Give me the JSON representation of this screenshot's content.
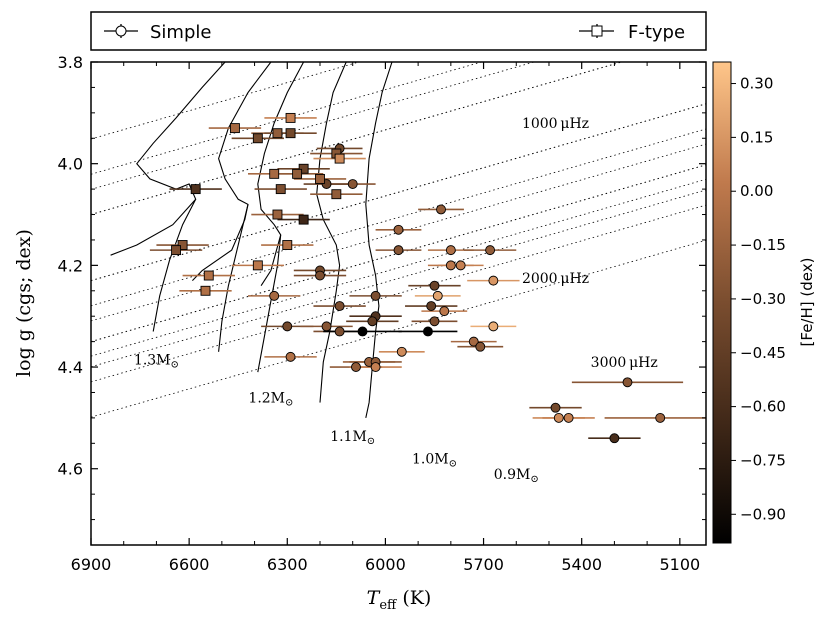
{
  "chart_data": {
    "type": "scatter",
    "xlabel": "T_eff (K)",
    "xlabel_main": "T",
    "xlabel_sub": "eff",
    "xlabel_unit": " (K)",
    "ylabel": "log g (cgs; dex)",
    "xlim": [
      6900,
      5020
    ],
    "ylim": [
      4.75,
      3.8
    ],
    "x_ticks": [
      6900,
      6600,
      6300,
      6000,
      5700,
      5400,
      5100
    ],
    "x_tick_labels": [
      "6900",
      "6600",
      "6300",
      "6000",
      "5700",
      "5400",
      "5100"
    ],
    "y_ticks": [
      3.8,
      4.0,
      4.2,
      4.4,
      4.6
    ],
    "y_tick_labels": [
      "3.8",
      "4.0",
      "4.2",
      "4.4",
      "4.6"
    ],
    "legend": [
      {
        "label": "Simple",
        "marker": "circle"
      },
      {
        "label": "F-type",
        "marker": "square"
      }
    ],
    "colorbar": {
      "label": "[Fe/H] (dex)",
      "range": [
        -0.98,
        0.36
      ],
      "ticks": [
        0.3,
        0.15,
        0.0,
        -0.15,
        -0.3,
        -0.45,
        -0.6,
        -0.75,
        -0.9
      ],
      "tick_labels": [
        "0.30",
        "0.15",
        "0.00",
        "−0.15",
        "−0.30",
        "−0.45",
        "−0.60",
        "−0.75",
        "−0.90"
      ]
    },
    "tracks": [
      {
        "mass": "1.3",
        "label_x": 6700,
        "label_y": 4.395,
        "points": [
          [
            6490,
            3.8
          ],
          [
            6560,
            3.85
          ],
          [
            6640,
            3.91
          ],
          [
            6710,
            3.96
          ],
          [
            6760,
            4.0
          ],
          [
            6720,
            4.03
          ],
          [
            6640,
            4.05
          ],
          [
            6600,
            4.04
          ],
          [
            6580,
            4.07
          ],
          [
            6650,
            4.12
          ],
          [
            6760,
            4.16
          ],
          [
            6840,
            4.18
          ]
        ]
      },
      {
        "mass": "1.3-ms",
        "label_x": null,
        "label_y": null,
        "points": [
          [
            6580,
            4.07
          ],
          [
            6620,
            4.12
          ],
          [
            6660,
            4.19
          ],
          [
            6690,
            4.26
          ],
          [
            6710,
            4.33
          ]
        ]
      },
      {
        "mass": "1.2",
        "label_x": 6350,
        "label_y": 4.475,
        "points": [
          [
            6350,
            3.8
          ],
          [
            6420,
            3.86
          ],
          [
            6480,
            3.93
          ],
          [
            6510,
            3.99
          ],
          [
            6490,
            4.03
          ],
          [
            6450,
            4.07
          ],
          [
            6420,
            4.08
          ],
          [
            6430,
            4.11
          ],
          [
            6470,
            4.17
          ],
          [
            6560,
            4.21
          ],
          [
            6590,
            4.23
          ]
        ]
      },
      {
        "mass": "1.2-ms",
        "label_x": null,
        "label_y": null,
        "points": [
          [
            6420,
            4.08
          ],
          [
            6450,
            4.16
          ],
          [
            6480,
            4.24
          ],
          [
            6500,
            4.31
          ],
          [
            6510,
            4.37
          ]
        ]
      },
      {
        "mass": "1.1",
        "label_x": 6100,
        "label_y": 4.545,
        "points": [
          [
            6250,
            3.8
          ],
          [
            6300,
            3.86
          ],
          [
            6340,
            3.92
          ],
          [
            6370,
            3.98
          ],
          [
            6390,
            4.04
          ],
          [
            6380,
            4.09
          ],
          [
            6340,
            4.12
          ],
          [
            6320,
            4.14
          ],
          [
            6350,
            4.21
          ],
          [
            6380,
            4.24
          ]
        ]
      },
      {
        "mass": "1.1-ms",
        "label_x": null,
        "label_y": null,
        "points": [
          [
            6320,
            4.14
          ],
          [
            6330,
            4.2
          ],
          [
            6350,
            4.27
          ],
          [
            6370,
            4.34
          ],
          [
            6390,
            4.41
          ]
        ]
      },
      {
        "mass": "1.0",
        "label_x": 5850,
        "label_y": 4.59,
        "points": [
          [
            6120,
            3.8
          ],
          [
            6160,
            3.86
          ],
          [
            6180,
            3.92
          ],
          [
            6200,
            3.99
          ],
          [
            6210,
            4.06
          ],
          [
            6190,
            4.11
          ],
          [
            6150,
            4.16
          ],
          [
            6140,
            4.2
          ],
          [
            6150,
            4.25
          ],
          [
            6170,
            4.33
          ],
          [
            6190,
            4.39
          ],
          [
            6200,
            4.47
          ]
        ]
      },
      {
        "mass": "0.9",
        "label_x": 5610,
        "label_y": 4.62,
        "points": [
          [
            5980,
            3.8
          ],
          [
            6010,
            3.86
          ],
          [
            6030,
            3.92
          ],
          [
            6050,
            3.99
          ],
          [
            6060,
            4.08
          ],
          [
            6050,
            4.16
          ],
          [
            6030,
            4.22
          ],
          [
            6020,
            4.28
          ],
          [
            6030,
            4.33
          ],
          [
            6040,
            4.4
          ],
          [
            6050,
            4.47
          ],
          [
            6060,
            4.5
          ]
        ]
      }
    ],
    "track_labels": [
      {
        "text": "1.3M",
        "x": 6700,
        "y": 4.395
      },
      {
        "text": "1.2M",
        "x": 6350,
        "y": 4.47
      },
      {
        "text": "1.1M",
        "x": 6100,
        "y": 4.545
      },
      {
        "text": "1.0M",
        "x": 5850,
        "y": 4.59
      },
      {
        "text": "0.9M",
        "x": 5600,
        "y": 4.62
      }
    ],
    "numax_lines": [
      {
        "label": "1000 μHz",
        "y_at_6900": 4.1,
        "slope_per_100K": -0.0185
      },
      {
        "label": "2000 μHz",
        "y_at_6900": 4.23,
        "slope_per_100K": -0.0185
      },
      {
        "label": "3000 μHz",
        "y_at_6900": 4.35,
        "slope_per_100K": -0.0185
      }
    ],
    "numax_labels": [
      {
        "text": "1000 μHz",
        "x": 5480,
        "y": 3.93
      },
      {
        "text": "2000 μHz",
        "x": 5480,
        "y": 4.235
      },
      {
        "text": "3000 μHz",
        "x": 5270,
        "y": 4.4
      }
    ],
    "series": [
      {
        "name": "Simple",
        "marker": "circle",
        "points": [
          {
            "teff": 6140,
            "logg": 3.97,
            "feh": -0.35,
            "xerr": 70
          },
          {
            "teff": 6100,
            "logg": 4.04,
            "feh": -0.25,
            "xerr": 70
          },
          {
            "teff": 6180,
            "logg": 4.04,
            "feh": -0.4,
            "xerr": 70
          },
          {
            "teff": 5830,
            "logg": 4.09,
            "feh": -0.2,
            "xerr": 70
          },
          {
            "teff": 5960,
            "logg": 4.13,
            "feh": -0.15,
            "xerr": 70
          },
          {
            "teff": 5960,
            "logg": 4.17,
            "feh": -0.25,
            "xerr": 70
          },
          {
            "teff": 5800,
            "logg": 4.17,
            "feh": -0.05,
            "xerr": 70
          },
          {
            "teff": 5680,
            "logg": 4.17,
            "feh": -0.2,
            "xerr": 80
          },
          {
            "teff": 5800,
            "logg": 4.2,
            "feh": 0.0,
            "xerr": 70
          },
          {
            "teff": 5770,
            "logg": 4.2,
            "feh": 0.05,
            "xerr": 70
          },
          {
            "teff": 6200,
            "logg": 4.21,
            "feh": -0.35,
            "xerr": 80
          },
          {
            "teff": 6200,
            "logg": 4.22,
            "feh": -0.3,
            "xerr": 80
          },
          {
            "teff": 5670,
            "logg": 4.23,
            "feh": 0.15,
            "xerr": 80
          },
          {
            "teff": 5850,
            "logg": 4.24,
            "feh": -0.4,
            "xerr": 80
          },
          {
            "teff": 6340,
            "logg": 4.26,
            "feh": -0.1,
            "xerr": 80
          },
          {
            "teff": 6030,
            "logg": 4.26,
            "feh": -0.3,
            "xerr": 80
          },
          {
            "teff": 5840,
            "logg": 4.26,
            "feh": 0.2,
            "xerr": 70
          },
          {
            "teff": 6140,
            "logg": 4.28,
            "feh": -0.3,
            "xerr": 80
          },
          {
            "teff": 5860,
            "logg": 4.28,
            "feh": -0.45,
            "xerr": 80
          },
          {
            "teff": 5820,
            "logg": 4.29,
            "feh": 0.0,
            "xerr": 70
          },
          {
            "teff": 6030,
            "logg": 4.3,
            "feh": -0.55,
            "xerr": 80
          },
          {
            "teff": 6040,
            "logg": 4.31,
            "feh": -0.45,
            "xerr": 80
          },
          {
            "teff": 5850,
            "logg": 4.31,
            "feh": -0.3,
            "xerr": 70
          },
          {
            "teff": 6300,
            "logg": 4.32,
            "feh": -0.35,
            "xerr": 80
          },
          {
            "teff": 6180,
            "logg": 4.32,
            "feh": -0.25,
            "xerr": 80
          },
          {
            "teff": 6140,
            "logg": 4.33,
            "feh": -0.3,
            "xerr": 80
          },
          {
            "teff": 5670,
            "logg": 4.32,
            "feh": 0.25,
            "xerr": 70
          },
          {
            "teff": 6070,
            "logg": 4.33,
            "feh": -0.98,
            "xerr": 120
          },
          {
            "teff": 5870,
            "logg": 4.33,
            "feh": -0.98,
            "xerr": 90
          },
          {
            "teff": 5730,
            "logg": 4.35,
            "feh": -0.1,
            "xerr": 70
          },
          {
            "teff": 5710,
            "logg": 4.36,
            "feh": -0.25,
            "xerr": 70
          },
          {
            "teff": 5950,
            "logg": 4.37,
            "feh": 0.1,
            "xerr": 70
          },
          {
            "teff": 6290,
            "logg": 4.38,
            "feh": -0.05,
            "xerr": 80
          },
          {
            "teff": 6050,
            "logg": 4.39,
            "feh": -0.15,
            "xerr": 80
          },
          {
            "teff": 6030,
            "logg": 4.39,
            "feh": -0.2,
            "xerr": 80
          },
          {
            "teff": 6090,
            "logg": 4.4,
            "feh": -0.2,
            "xerr": 80
          },
          {
            "teff": 6030,
            "logg": 4.4,
            "feh": 0.05,
            "xerr": 80
          },
          {
            "teff": 5260,
            "logg": 4.43,
            "feh": -0.25,
            "xerr": 170
          },
          {
            "teff": 5480,
            "logg": 4.48,
            "feh": -0.35,
            "xerr": 80
          },
          {
            "teff": 5470,
            "logg": 4.5,
            "feh": 0.1,
            "xerr": 80
          },
          {
            "teff": 5440,
            "logg": 4.5,
            "feh": 0.05,
            "xerr": 80
          },
          {
            "teff": 5160,
            "logg": 4.5,
            "feh": -0.15,
            "xerr": 170
          },
          {
            "teff": 5300,
            "logg": 4.54,
            "feh": -0.6,
            "xerr": 80
          }
        ]
      },
      {
        "name": "F-type",
        "marker": "square",
        "points": [
          {
            "teff": 6290,
            "logg": 3.91,
            "feh": 0.05,
            "xerr": 80
          },
          {
            "teff": 6460,
            "logg": 3.93,
            "feh": -0.1,
            "xerr": 80
          },
          {
            "teff": 6330,
            "logg": 3.94,
            "feh": -0.2,
            "xerr": 80
          },
          {
            "teff": 6290,
            "logg": 3.94,
            "feh": -0.35,
            "xerr": 80
          },
          {
            "teff": 6390,
            "logg": 3.95,
            "feh": -0.35,
            "xerr": 80
          },
          {
            "teff": 6150,
            "logg": 3.98,
            "feh": -0.25,
            "xerr": 80
          },
          {
            "teff": 6140,
            "logg": 3.99,
            "feh": 0.1,
            "xerr": 80
          },
          {
            "teff": 6340,
            "logg": 4.02,
            "feh": -0.1,
            "xerr": 80
          },
          {
            "teff": 6250,
            "logg": 4.01,
            "feh": -0.4,
            "xerr": 80
          },
          {
            "teff": 6270,
            "logg": 4.02,
            "feh": -0.2,
            "xerr": 80
          },
          {
            "teff": 6200,
            "logg": 4.03,
            "feh": -0.15,
            "xerr": 80
          },
          {
            "teff": 6580,
            "logg": 4.05,
            "feh": -0.55,
            "xerr": 80
          },
          {
            "teff": 6320,
            "logg": 4.05,
            "feh": -0.3,
            "xerr": 80
          },
          {
            "teff": 6150,
            "logg": 4.06,
            "feh": -0.2,
            "xerr": 80
          },
          {
            "teff": 6330,
            "logg": 4.1,
            "feh": -0.15,
            "xerr": 80
          },
          {
            "teff": 6250,
            "logg": 4.11,
            "feh": -0.65,
            "xerr": 80
          },
          {
            "teff": 6620,
            "logg": 4.16,
            "feh": -0.25,
            "xerr": 80
          },
          {
            "teff": 6300,
            "logg": 4.16,
            "feh": -0.05,
            "xerr": 80
          },
          {
            "teff": 6640,
            "logg": 4.17,
            "feh": -0.3,
            "xerr": 80
          },
          {
            "teff": 6390,
            "logg": 4.2,
            "feh": 0.0,
            "xerr": 80
          },
          {
            "teff": 6540,
            "logg": 4.22,
            "feh": -0.05,
            "xerr": 80
          },
          {
            "teff": 6550,
            "logg": 4.25,
            "feh": -0.05,
            "xerr": 80
          }
        ]
      }
    ]
  }
}
